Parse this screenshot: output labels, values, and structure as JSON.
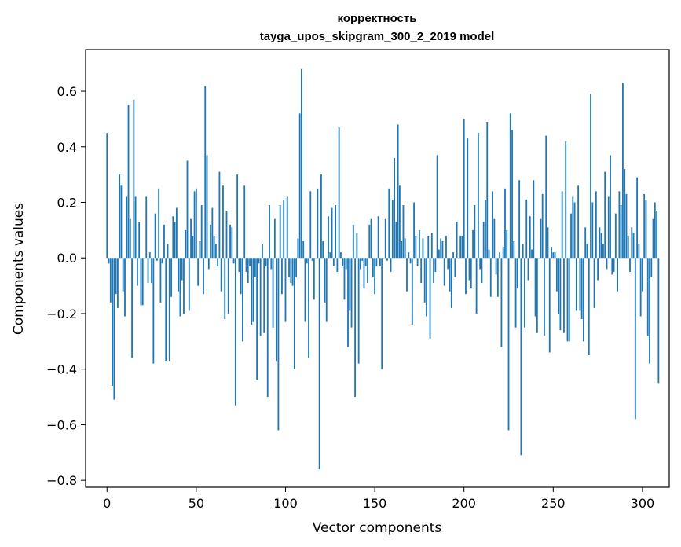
{
  "chart_data": {
    "type": "bar",
    "title": "корректность",
    "subtitle": "tayga_upos_skipgram_300_2_2019 model",
    "xlabel": "Vector components",
    "ylabel": "Components values",
    "xlim": [
      -12,
      315
    ],
    "ylim": [
      -0.825,
      0.75
    ],
    "xticks": [
      0,
      50,
      100,
      150,
      200,
      250,
      300
    ],
    "xtick_labels": [
      "0",
      "50",
      "100",
      "150",
      "200",
      "250",
      "300"
    ],
    "yticks": [
      -0.8,
      -0.6,
      -0.4,
      -0.2,
      0.0,
      0.2,
      0.4,
      0.6
    ],
    "ytick_labels": [
      "−0.8",
      "−0.6",
      "−0.4",
      "−0.2",
      "0.0",
      "0.2",
      "0.4",
      "0.6"
    ],
    "grid": false,
    "bar_color": "#1f77b4",
    "values": [
      0.45,
      -0.02,
      -0.16,
      -0.46,
      -0.51,
      -0.13,
      -0.18,
      0.3,
      0.26,
      -0.12,
      -0.21,
      0.22,
      0.55,
      0.14,
      -0.36,
      0.57,
      0.22,
      -0.1,
      0.13,
      -0.17,
      -0.17,
      0.0,
      0.22,
      -0.09,
      0.02,
      -0.09,
      -0.38,
      0.16,
      -0.01,
      0.25,
      -0.16,
      -0.02,
      0.12,
      -0.37,
      0.05,
      -0.37,
      -0.14,
      0.15,
      0.13,
      0.18,
      -0.12,
      -0.21,
      -0.08,
      -0.2,
      0.1,
      0.35,
      -0.19,
      0.14,
      0.08,
      0.24,
      0.25,
      -0.1,
      0.06,
      0.19,
      -0.13,
      0.62,
      0.37,
      -0.04,
      0.12,
      0.18,
      0.08,
      0.05,
      -0.03,
      0.31,
      -0.12,
      0.26,
      -0.22,
      0.17,
      -0.2,
      0.12,
      0.11,
      -0.02,
      -0.53,
      0.3,
      -0.05,
      -0.13,
      -0.3,
      0.26,
      -0.05,
      -0.09,
      -0.03,
      -0.24,
      -0.23,
      -0.07,
      -0.44,
      -0.02,
      -0.28,
      0.05,
      -0.27,
      -0.03,
      -0.5,
      0.19,
      -0.04,
      -0.25,
      0.14,
      -0.37,
      -0.62,
      0.19,
      -0.13,
      0.21,
      -0.23,
      0.22,
      -0.07,
      -0.09,
      -0.1,
      -0.4,
      -0.07,
      0.07,
      0.52,
      0.68,
      0.06,
      -0.23,
      -0.02,
      -0.36,
      0.24,
      -0.01,
      -0.15,
      0.0,
      0.25,
      -0.76,
      0.3,
      0.06,
      -0.16,
      -0.23,
      0.15,
      0.02,
      0.18,
      -0.03,
      0.19,
      -0.05,
      0.47,
      0.02,
      -0.03,
      -0.15,
      -0.04,
      -0.32,
      -0.19,
      -0.25,
      0.12,
      -0.5,
      0.09,
      -0.38,
      -0.04,
      -0.01,
      -0.11,
      -0.03,
      -0.09,
      0.12,
      0.14,
      -0.07,
      -0.13,
      -0.03,
      0.15,
      -0.03,
      -0.4,
      0.0,
      0.14,
      -0.01,
      0.25,
      -0.05,
      0.21,
      0.36,
      0.13,
      0.48,
      0.26,
      0.06,
      0.19,
      0.07,
      -0.12,
      0.02,
      -0.02,
      -0.24,
      0.2,
      0.08,
      -0.03,
      0.1,
      -0.09,
      0.07,
      -0.16,
      -0.21,
      0.08,
      -0.29,
      0.09,
      -0.09,
      -0.05,
      0.37,
      0.03,
      0.07,
      0.06,
      -0.1,
      0.08,
      -0.04,
      -0.12,
      -0.18,
      0.02,
      -0.07,
      0.13,
      0.0,
      0.08,
      0.08,
      0.5,
      -0.13,
      0.43,
      -0.08,
      -0.11,
      0.1,
      0.19,
      -0.2,
      0.45,
      -0.04,
      -0.09,
      0.13,
      0.21,
      0.49,
      0.03,
      -0.14,
      0.24,
      0.14,
      -0.06,
      -0.14,
      0.02,
      -0.32,
      0.04,
      0.25,
      0.1,
      -0.62,
      0.52,
      0.46,
      0.06,
      -0.25,
      -0.11,
      0.28,
      -0.71,
      0.05,
      -0.25,
      0.21,
      -0.08,
      0.15,
      0.03,
      0.28,
      -0.21,
      -0.27,
      0.0,
      0.14,
      0.23,
      -0.28,
      0.44,
      0.11,
      -0.34,
      0.04,
      0.02,
      0.02,
      -0.12,
      -0.2,
      -0.26,
      0.24,
      -0.27,
      0.42,
      -0.3,
      -0.3,
      0.16,
      0.22,
      0.2,
      -0.19,
      0.26,
      -0.19,
      -0.22,
      -0.3,
      0.11,
      0.05,
      -0.35,
      0.59,
      0.2,
      -0.18,
      0.24,
      -0.08,
      0.11,
      0.09,
      0.05,
      0.31,
      -0.04,
      0.22,
      0.37,
      -0.06,
      -0.05,
      0.16,
      -0.12,
      0.24,
      0.19,
      0.63,
      0.32,
      0.23,
      0.08,
      -0.05,
      0.11,
      0.09,
      -0.58,
      0.29,
      0.05,
      -0.21,
      -0.12,
      0.23,
      0.21,
      -0.28,
      -0.38,
      -0.07,
      0.14,
      0.2,
      0.17,
      -0.45
    ]
  }
}
